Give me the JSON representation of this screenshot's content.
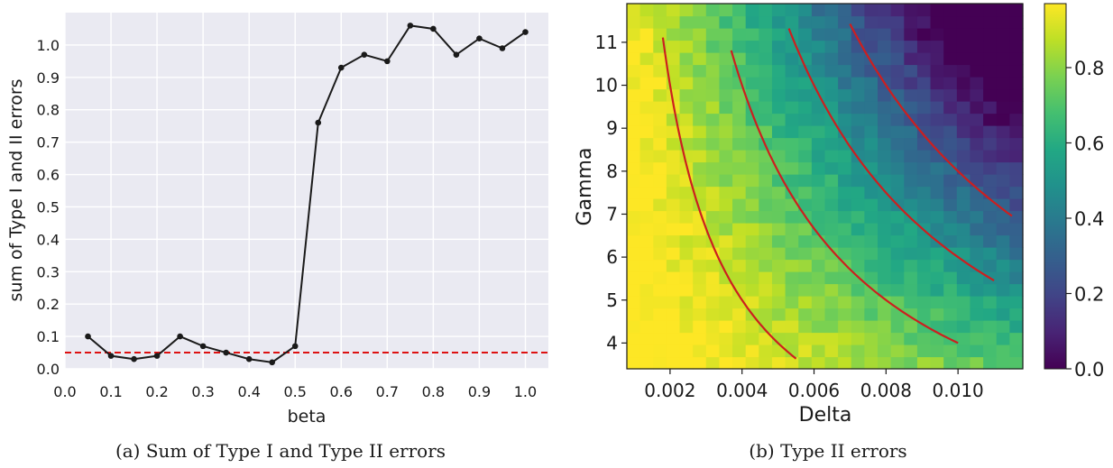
{
  "chart_data": [
    {
      "type": "line",
      "caption": "(a) Sum of Type I and Type II errors",
      "xlabel": "beta",
      "ylabel": "sum of Type I and II errors",
      "xlim": [
        0.0,
        1.05
      ],
      "ylim": [
        0.0,
        1.1
      ],
      "xticks": [
        0.0,
        0.1,
        0.2,
        0.3,
        0.4,
        0.5,
        0.6,
        0.7,
        0.8,
        0.9,
        1.0
      ],
      "yticks": [
        0.0,
        0.1,
        0.2,
        0.3,
        0.4,
        0.5,
        0.6,
        0.7,
        0.8,
        0.9,
        1.0
      ],
      "xtick_labels": [
        "0.0",
        "0.1",
        "0.2",
        "0.3",
        "0.4",
        "0.5",
        "0.6",
        "0.7",
        "0.8",
        "0.9",
        "1.0"
      ],
      "ytick_labels": [
        "0.0",
        "0.1",
        "0.2",
        "0.3",
        "0.4",
        "0.5",
        "0.6",
        "0.7",
        "0.8",
        "0.9",
        "1.0"
      ],
      "grid": true,
      "background": "#eaeaf2",
      "line_color": "#1a1a1a",
      "x": [
        0.05,
        0.1,
        0.15,
        0.2,
        0.25,
        0.3,
        0.35,
        0.4,
        0.45,
        0.5,
        0.55,
        0.6,
        0.65,
        0.7,
        0.75,
        0.8,
        0.85,
        0.9,
        0.95,
        1.0
      ],
      "y": [
        0.1,
        0.04,
        0.03,
        0.04,
        0.1,
        0.07,
        0.05,
        0.03,
        0.02,
        0.07,
        0.76,
        0.93,
        0.97,
        0.95,
        1.06,
        1.05,
        0.97,
        1.02,
        0.99,
        1.04
      ],
      "reference_line": {
        "y": 0.05,
        "color": "#dd1111",
        "style": "dashed"
      }
    },
    {
      "type": "heatmap",
      "caption": "(b) Type II errors",
      "xlabel": "Delta",
      "ylabel": "Gamma",
      "xlim": [
        0.0008,
        0.0118
      ],
      "ylim": [
        3.4,
        11.9
      ],
      "xticks": [
        0.002,
        0.004,
        0.006,
        0.008,
        0.01
      ],
      "yticks": [
        4,
        5,
        6,
        7,
        8,
        9,
        10,
        11
      ],
      "xtick_labels": [
        "0.002",
        "0.004",
        "0.006",
        "0.008",
        "0.010"
      ],
      "ytick_labels": [
        "4",
        "5",
        "6",
        "7",
        "8",
        "9",
        "10",
        "11"
      ],
      "colormap": "viridis",
      "colorbar": {
        "min": 0.0,
        "max": 0.97,
        "ticks": [
          0.0,
          0.2,
          0.4,
          0.6,
          0.8
        ],
        "tick_labels": [
          "0.0",
          "0.2",
          "0.4",
          "0.6",
          "0.8"
        ]
      },
      "grid_size": [
        30,
        30
      ],
      "cell_value_model": "value ≈ 1.05 - 1.12·(delta·gamma/0.112)^1.15, clipped to [0, 0.97]",
      "contour_lines": {
        "color": "#cc1f1f",
        "curves": [
          {
            "product": 0.02,
            "delta_range": [
              0.0018,
              0.0055
            ]
          },
          {
            "product": 0.04,
            "delta_range": [
              0.0037,
              0.01
            ]
          },
          {
            "product": 0.06,
            "delta_range": [
              0.0053,
              0.011
            ]
          },
          {
            "product": 0.08,
            "delta_range": [
              0.007,
              0.0115
            ]
          }
        ]
      }
    }
  ]
}
